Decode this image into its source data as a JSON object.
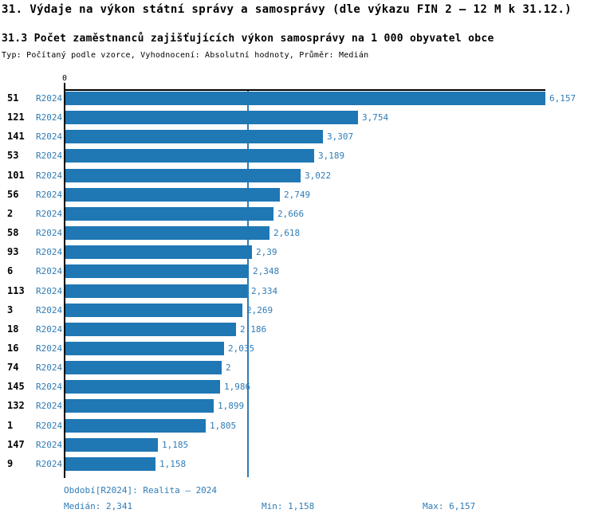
{
  "header": {
    "title": "31. Výdaje na výkon státní správy a samosprávy (dle výkazu FIN 2 – 12 M k 31.12.)",
    "subtitle": "31.3 Počet zaměstnanců zajišťujících výkon samosprávy na 1 000 obyvatel obce",
    "meta": "Typ: Počítaný podle vzorce, Vyhodnocení: Absolutní hodnoty, Průměr: Medián"
  },
  "axis": {
    "zero_label": "0"
  },
  "colors": {
    "bar": "#1f77b4",
    "accent_text": "#2f7cb6",
    "axis": "#000000"
  },
  "chart_data": {
    "type": "bar",
    "orientation": "horizontal",
    "series_name": "R2024",
    "categories": [
      "51",
      "121",
      "141",
      "53",
      "101",
      "56",
      "2",
      "58",
      "93",
      "6",
      "113",
      "3",
      "18",
      "16",
      "74",
      "145",
      "132",
      "1",
      "147",
      "9"
    ],
    "values": [
      6.157,
      3.754,
      3.307,
      3.189,
      3.022,
      2.749,
      2.666,
      2.618,
      2.39,
      2.348,
      2.334,
      2.269,
      2.186,
      2.035,
      2,
      1.986,
      1.899,
      1.805,
      1.185,
      1.158
    ],
    "value_labels": [
      "6,157",
      "3,754",
      "3,307",
      "3,189",
      "3,022",
      "2,749",
      "2,666",
      "2,618",
      "2,39",
      "2,348",
      "2,334",
      "2,269",
      "2,186",
      "2,035",
      "2",
      "1,986",
      "1,899",
      "1,805",
      "1,185",
      "1,158"
    ],
    "xlim": [
      0,
      6.157
    ],
    "median_line": 2.341,
    "grid": "median-only",
    "legend_position": "none",
    "title": "31.3 Počet zaměstnanců zajišťujících výkon samosprávy na 1 000 obyvatel obce",
    "xlabel": "",
    "ylabel": ""
  },
  "footer": {
    "period": "Období[R2024]: Realita – 2024",
    "median": "Medián: 2,341",
    "min": "Min: 1,158",
    "max": "Max: 6,157"
  }
}
